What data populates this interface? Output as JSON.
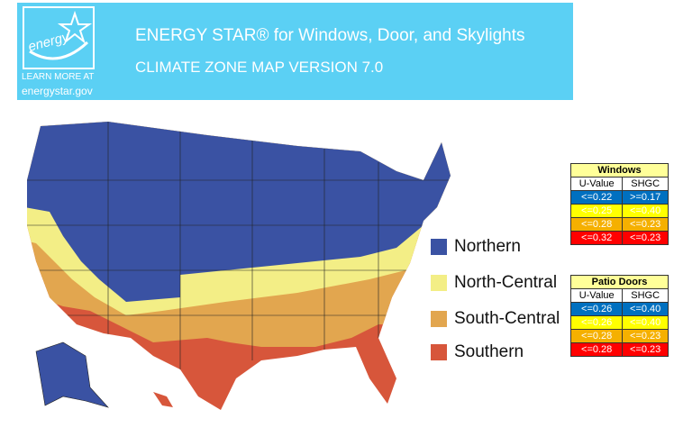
{
  "header": {
    "logo_text": "energy",
    "learn_more": "LEARN MORE AT",
    "link": "energystar.gov",
    "title": "ENERGY STAR® for Windows, Door, and Skylights",
    "subtitle": "CLIMATE ZONE MAP VERSION 7.0"
  },
  "legend": [
    {
      "label": "Northern",
      "color": "#3a52a3"
    },
    {
      "label": "North-Central",
      "color": "#f3ee86"
    },
    {
      "label": "South-Central",
      "color": "#e2a64f"
    },
    {
      "label": "Southern",
      "color": "#d7563b"
    }
  ],
  "tables": [
    {
      "title": "Windows",
      "columns": [
        "U-Value",
        "SHGC"
      ],
      "rows": [
        [
          "<=0.22",
          ">=0.17"
        ],
        [
          "<=0.25",
          "<=0.40"
        ],
        [
          "<=0.28",
          "<=0.23"
        ],
        [
          "<=0.32",
          "<=0.23"
        ]
      ]
    },
    {
      "title": "Patio Doors",
      "columns": [
        "U-Value",
        "SHGC"
      ],
      "rows": [
        [
          "<=0.26",
          "<=0.40"
        ],
        [
          "<=0.26",
          "<=0.40"
        ],
        [
          "<=0.28",
          "<=0.23"
        ],
        [
          "<=0.28",
          "<=0.23"
        ]
      ]
    }
  ]
}
